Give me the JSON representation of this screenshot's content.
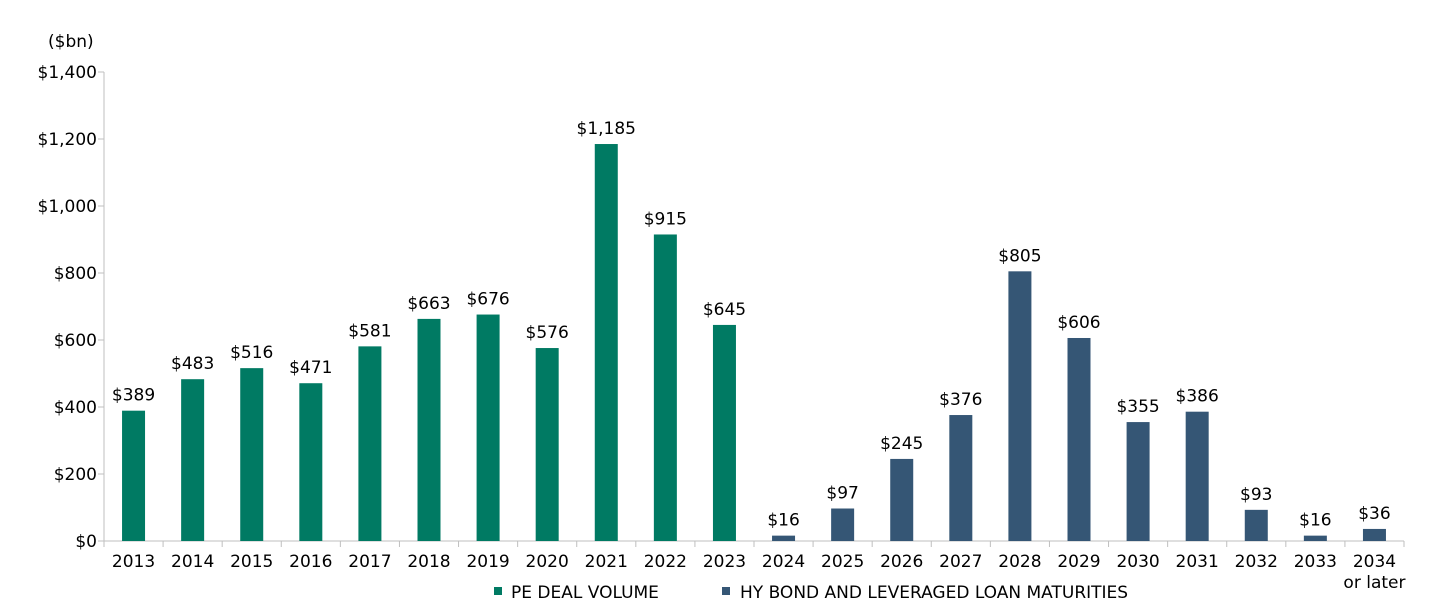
{
  "chart_data": {
    "type": "bar",
    "unit_label": "($bn)",
    "categories": [
      "2013",
      "2014",
      "2015",
      "2016",
      "2017",
      "2018",
      "2019",
      "2020",
      "2021",
      "2022",
      "2023",
      "2024",
      "2025",
      "2026",
      "2027",
      "2028",
      "2029",
      "2030",
      "2031",
      "2032",
      "2033",
      "2034"
    ],
    "category_sublabels": {
      "2034": "or later"
    },
    "series": [
      {
        "name": "PE DEAL VOLUME",
        "color": "#007a63",
        "x": [
          "2013",
          "2014",
          "2015",
          "2016",
          "2017",
          "2018",
          "2019",
          "2020",
          "2021",
          "2022",
          "2023"
        ],
        "values": [
          389,
          483,
          516,
          471,
          581,
          663,
          676,
          576,
          1185,
          915,
          645
        ],
        "value_labels": [
          "$389",
          "$483",
          "$516",
          "$471",
          "$581",
          "$663",
          "$676",
          "$576",
          "$1,185",
          "$915",
          "$645"
        ]
      },
      {
        "name": "HY BOND AND LEVERAGED LOAN MATURITIES",
        "color": "#355675",
        "x": [
          "2024",
          "2025",
          "2026",
          "2027",
          "2028",
          "2029",
          "2030",
          "2031",
          "2032",
          "2033",
          "2034"
        ],
        "values": [
          16,
          97,
          245,
          376,
          805,
          606,
          355,
          386,
          93,
          16,
          36
        ],
        "value_labels": [
          "$16",
          "$97",
          "$245",
          "$376",
          "$805",
          "$606",
          "$355",
          "$386",
          "$93",
          "$16",
          "$36"
        ]
      }
    ],
    "ylim": [
      0,
      1400
    ],
    "yticks": [
      0,
      200,
      400,
      600,
      800,
      1000,
      1200,
      1400
    ],
    "ytick_labels": [
      "$0",
      "$200",
      "$400",
      "$600",
      "$800",
      "$1,000",
      "$1,200",
      "$1,400"
    ],
    "grid": false,
    "legend_position": "bottom-center"
  }
}
